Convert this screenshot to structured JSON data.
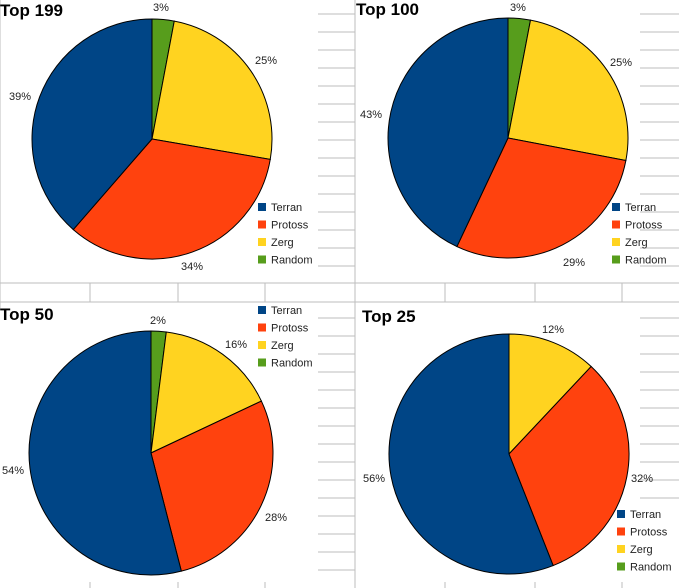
{
  "colors": {
    "Terran": "#004586",
    "Protoss": "#ff420e",
    "Zerg": "#ffd320",
    "Random": "#579d1c"
  },
  "chart_data": [
    {
      "type": "pie",
      "title": "Top 199",
      "labels": [
        "Random",
        "Zerg",
        "Protoss",
        "Terran"
      ],
      "values": [
        3,
        25,
        34,
        39
      ],
      "value_labels": [
        "3%",
        "25%",
        "34%",
        "39%"
      ],
      "legend": [
        "Terran",
        "Protoss",
        "Zerg",
        "Random"
      ],
      "legend_position": "bottom-right"
    },
    {
      "type": "pie",
      "title": "Top 100",
      "labels": [
        "Random",
        "Zerg",
        "Protoss",
        "Terran"
      ],
      "values": [
        3,
        25,
        29,
        43
      ],
      "value_labels": [
        "3%",
        "25%",
        "29%",
        "43%"
      ],
      "legend": [
        "Terran",
        "Protoss",
        "Zerg",
        "Random"
      ],
      "legend_position": "bottom-right"
    },
    {
      "type": "pie",
      "title": "Top 50",
      "labels": [
        "Random",
        "Zerg",
        "Protoss",
        "Terran"
      ],
      "values": [
        2,
        16,
        28,
        54
      ],
      "value_labels": [
        "2%",
        "16%",
        "28%",
        "54%"
      ],
      "legend": [
        "Terran",
        "Protoss",
        "Zerg",
        "Random"
      ],
      "legend_position": "top-right"
    },
    {
      "type": "pie",
      "title": "Top 25",
      "labels": [
        "Zerg",
        "Protoss",
        "Terran"
      ],
      "values": [
        12,
        32,
        56
      ],
      "value_labels": [
        "12%",
        "32%",
        "56%"
      ],
      "legend": [
        "Terran",
        "Protoss",
        "Zerg",
        "Random"
      ],
      "legend_position": "bottom-right"
    }
  ]
}
